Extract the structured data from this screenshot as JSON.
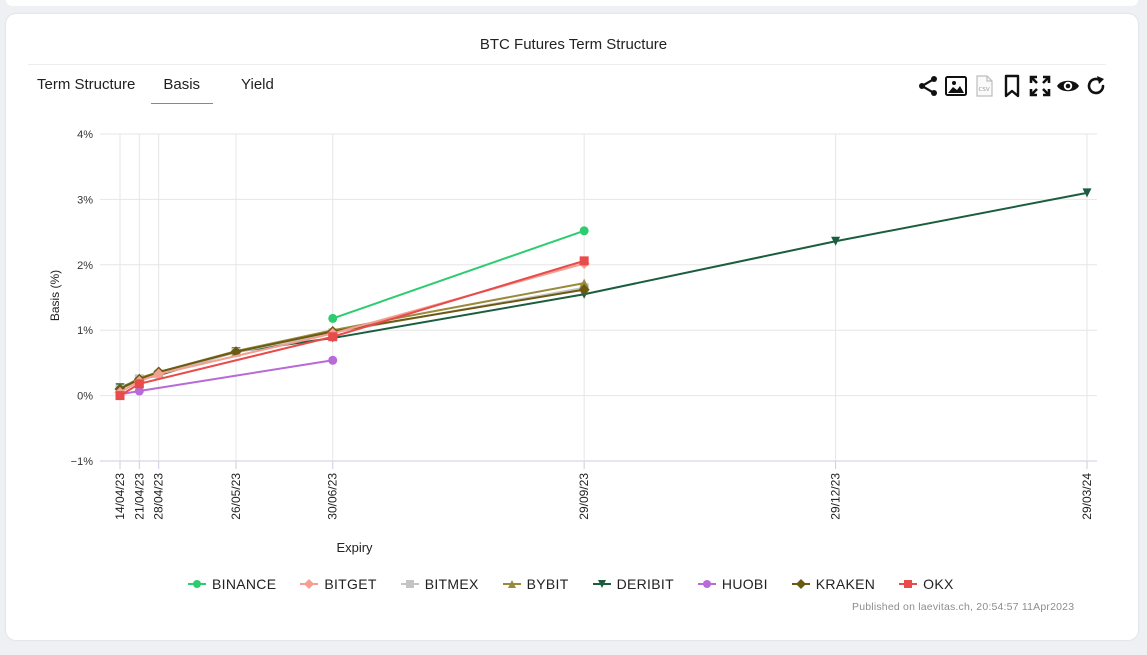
{
  "chart_title": "BTC Futures Term Structure",
  "tabs": [
    {
      "label": "Term Structure",
      "active": false
    },
    {
      "label": "Basis",
      "active": true
    },
    {
      "label": "Yield",
      "active": false
    }
  ],
  "toolbar_icons": [
    "share-icon",
    "image-export-icon",
    "csv-export-icon",
    "bookmark-icon",
    "fullscreen-icon",
    "eye-icon",
    "refresh-icon"
  ],
  "published": "Published on laevitas.ch, 20:54:57 11Apr2023",
  "chart_data": {
    "type": "line",
    "xlabel": "Expiry",
    "ylabel": "Basis (%)",
    "categories": [
      "14/04/23",
      "21/04/23",
      "28/04/23",
      "26/05/23",
      "30/06/23",
      "29/09/23",
      "29/12/23",
      "29/03/24"
    ],
    "ylim": [
      -1,
      4
    ],
    "yticks": [
      "−1%",
      "0%",
      "1%",
      "2%",
      "3%",
      "4%"
    ],
    "grid": true,
    "legend_position": "bottom",
    "series": [
      {
        "name": "BINANCE",
        "color": "#2ecc71",
        "marker": "circle",
        "x": [
          "30/06/23",
          "29/09/23"
        ],
        "values": [
          1.18,
          2.52
        ]
      },
      {
        "name": "BITGET",
        "color": "#f4a091",
        "marker": "diamond",
        "x": [
          "14/04/23",
          "21/04/23",
          "28/04/23",
          "30/06/23",
          "29/09/23"
        ],
        "values": [
          0.05,
          0.22,
          0.33,
          0.95,
          2.02
        ]
      },
      {
        "name": "BITMEX",
        "color": "#c4c4c4",
        "marker": "square",
        "x": [
          "14/04/23",
          "21/04/23",
          "28/04/23",
          "26/05/23",
          "30/06/23",
          "29/09/23"
        ],
        "values": [
          0.1,
          0.25,
          0.33,
          0.66,
          0.96,
          1.65
        ]
      },
      {
        "name": "BYBIT",
        "color": "#9a8a3c",
        "marker": "triangle-up",
        "x": [
          "14/04/23",
          "21/04/23",
          "28/04/23",
          "26/05/23",
          "30/06/23",
          "29/09/23"
        ],
        "values": [
          0.1,
          0.27,
          0.36,
          0.68,
          1.0,
          1.72
        ]
      },
      {
        "name": "DERIBIT",
        "color": "#1b5e3f",
        "marker": "triangle-down",
        "x": [
          "14/04/23",
          "21/04/23",
          "28/04/23",
          "26/05/23",
          "30/06/23",
          "29/09/23",
          "29/12/23",
          "29/03/24"
        ],
        "values": [
          0.12,
          0.25,
          0.31,
          0.67,
          0.88,
          1.55,
          2.36,
          3.1
        ]
      },
      {
        "name": "HUOBI",
        "color": "#b76ad8",
        "marker": "circle",
        "x": [
          "14/04/23",
          "21/04/23",
          "30/06/23"
        ],
        "values": [
          0.02,
          0.07,
          0.54
        ]
      },
      {
        "name": "KRAKEN",
        "color": "#6b5a12",
        "marker": "diamond",
        "x": [
          "14/04/23",
          "21/04/23",
          "28/04/23",
          "26/05/23",
          "30/06/23",
          "29/09/23"
        ],
        "values": [
          0.1,
          0.25,
          0.36,
          0.67,
          0.98,
          1.62
        ]
      },
      {
        "name": "OKX",
        "color": "#e84b4b",
        "marker": "square",
        "x": [
          "14/04/23",
          "21/04/23",
          "30/06/23",
          "29/09/23"
        ],
        "values": [
          0.0,
          0.18,
          0.9,
          2.06
        ]
      }
    ]
  }
}
